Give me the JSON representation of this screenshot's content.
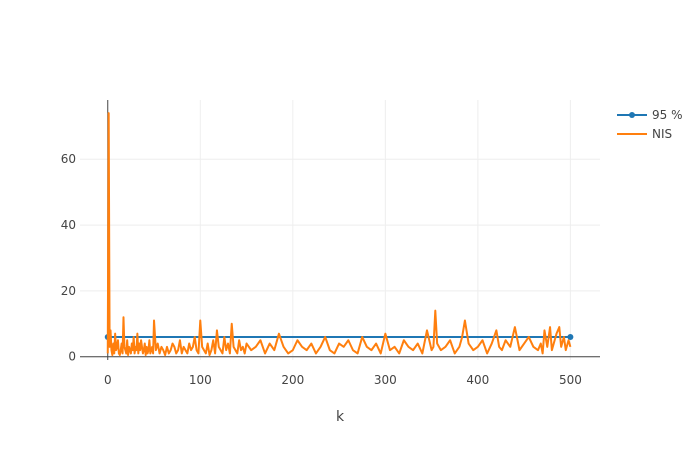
{
  "chart_data": {
    "type": "line",
    "title": "",
    "xlabel": "k",
    "ylabel": "",
    "xlim": [
      -30,
      532
    ],
    "ylim": [
      -1,
      78
    ],
    "x_ticks": [
      0,
      100,
      200,
      300,
      400,
      500
    ],
    "y_ticks": [
      0,
      20,
      40,
      60
    ],
    "x_tick_labels": [
      "0",
      "100",
      "200",
      "300",
      "400",
      "500"
    ],
    "y_tick_labels": [
      "0",
      "20",
      "40",
      "60"
    ],
    "grid": true,
    "legend_position": "top-right",
    "series": [
      {
        "name": "95 %",
        "color": "#1f77b4",
        "marker": "circle",
        "x": [
          0,
          500
        ],
        "y": [
          6,
          6
        ]
      },
      {
        "name": "NIS",
        "color": "#ff7f0e",
        "marker": "none",
        "x": [
          0,
          1,
          2,
          3,
          4,
          5,
          6,
          7,
          8,
          9,
          10,
          11,
          12,
          13,
          14,
          15,
          16,
          17,
          18,
          19,
          20,
          21,
          22,
          23,
          24,
          25,
          26,
          27,
          28,
          29,
          30,
          31,
          32,
          33,
          34,
          35,
          36,
          37,
          38,
          39,
          40,
          41,
          42,
          43,
          44,
          45,
          46,
          47,
          48,
          49,
          50,
          52,
          54,
          56,
          58,
          60,
          62,
          64,
          66,
          68,
          70,
          72,
          74,
          76,
          78,
          80,
          82,
          84,
          86,
          88,
          90,
          92,
          94,
          96,
          98,
          100,
          102,
          104,
          106,
          108,
          110,
          112,
          114,
          116,
          118,
          120,
          122,
          124,
          126,
          128,
          130,
          132,
          134,
          136,
          138,
          140,
          142,
          144,
          146,
          148,
          150,
          155,
          160,
          165,
          170,
          175,
          180,
          185,
          190,
          195,
          200,
          205,
          210,
          215,
          220,
          225,
          230,
          235,
          240,
          245,
          250,
          255,
          260,
          265,
          270,
          275,
          280,
          285,
          290,
          295,
          300,
          305,
          310,
          315,
          320,
          325,
          330,
          335,
          340,
          345,
          350,
          352,
          354,
          356,
          360,
          365,
          370,
          375,
          380,
          383,
          386,
          390,
          395,
          400,
          405,
          410,
          415,
          420,
          423,
          426,
          430,
          435,
          440,
          445,
          450,
          455,
          460,
          465,
          468,
          470,
          472,
          475,
          478,
          480,
          483,
          485,
          488,
          490,
          493,
          495,
          498,
          500
        ],
        "y": [
          1,
          74,
          3,
          8,
          2,
          0.5,
          4,
          1,
          7,
          2,
          3,
          5,
          1,
          0.5,
          2,
          4,
          1,
          12,
          3,
          2,
          1,
          5,
          0.5,
          3,
          2,
          1,
          4,
          2,
          6,
          1,
          3,
          2,
          7,
          1,
          4,
          2,
          5,
          3,
          1,
          2,
          4,
          0.5,
          3,
          1,
          2,
          5,
          1,
          2,
          3,
          1,
          11,
          2,
          4,
          1,
          3,
          2,
          0.5,
          3,
          1,
          2,
          4,
          3,
          1,
          2,
          5,
          1,
          3,
          2,
          1,
          4,
          2,
          3,
          6,
          2,
          1,
          11,
          3,
          2,
          1,
          4,
          0.5,
          2,
          5,
          1,
          8,
          3,
          2,
          1,
          6,
          2,
          4,
          1,
          10,
          3,
          2,
          1,
          5,
          2,
          3,
          1,
          4,
          2,
          3,
          5,
          1,
          4,
          2,
          7,
          3,
          1,
          2,
          5,
          3,
          2,
          4,
          1,
          3,
          6,
          2,
          1,
          4,
          3,
          5,
          2,
          1,
          6,
          3,
          2,
          4,
          1,
          7,
          2,
          3,
          1,
          5,
          3,
          2,
          4,
          1,
          8,
          2,
          3,
          14,
          4,
          2,
          3,
          5,
          1,
          3,
          6,
          11,
          4,
          2,
          3,
          5,
          1,
          4,
          8,
          3,
          2,
          5,
          3,
          9,
          2,
          4,
          6,
          3,
          2,
          4,
          1,
          8,
          3,
          9,
          2,
          5,
          7,
          9,
          3,
          6,
          2,
          5,
          3
        ]
      }
    ]
  }
}
